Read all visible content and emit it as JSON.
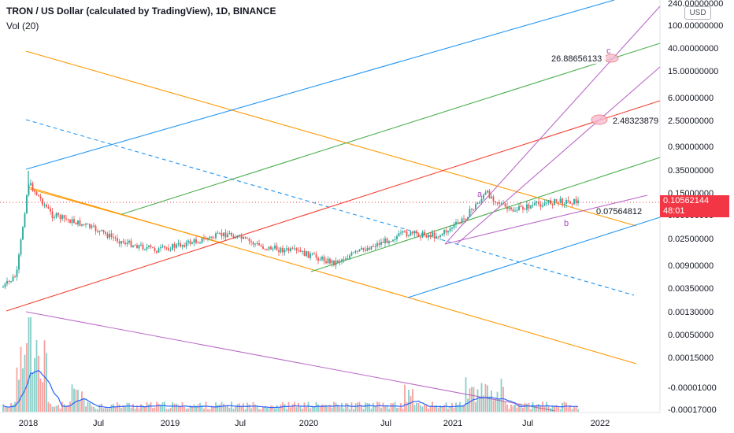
{
  "header": {
    "title": "TRON / US Dollar (calculated by TradingView), 1D, BINANCE",
    "volume_label": "Vol (20)"
  },
  "axis": {
    "currency_button": "USD",
    "price_tag": {
      "value": "0.10562144",
      "countdown": "48:01",
      "color": "#f23645"
    }
  },
  "colors": {
    "up": "#26a69a",
    "down": "#ef5350",
    "orange": "#ff9800",
    "blue": "#2196f3",
    "green": "#4caf50",
    "red": "#f44336",
    "purple": "#ba68c8",
    "volume_ma": "#2962ff"
  },
  "chart_data": {
    "type": "candlestick",
    "title": "TRON / US Dollar (calculated by TradingView), 1D, BINANCE",
    "y_scale": "log-like (labels as printed)",
    "y_tick_labels": [
      "240.00000000",
      "100.00000000",
      "40.00000000",
      "15.00000000",
      "6.00000000",
      "2.50000000",
      "0.90000000",
      "0.35000000",
      "0.15000000",
      "0.06000000",
      "0.02500000",
      "0.00900000",
      "0.00350000",
      "0.00130000",
      "0.00050000",
      "0.00015000",
      "-0.00001000",
      "-0.00017000"
    ],
    "x_tick_labels": [
      "2018",
      "Jul",
      "2019",
      "Jul",
      "2020",
      "Jul",
      "2021",
      "Jul",
      "2022"
    ],
    "last_price": "0.10562144",
    "annotations": [
      {
        "label": "a",
        "color": "#ab47bc"
      },
      {
        "label": "b",
        "color": "#ab47bc"
      },
      {
        "label": "c",
        "color": "#ab47bc"
      },
      {
        "label": "26.88656133"
      },
      {
        "label": "2.48323879"
      },
      {
        "label": "0.07564812"
      }
    ],
    "price_path_x": [
      "2017-10",
      "2017-12",
      "2018-01",
      "2018-03",
      "2018-06",
      "2018-09",
      "2018-12",
      "2019-03",
      "2019-06",
      "2019-09",
      "2019-12",
      "2020-03",
      "2020-06",
      "2020-09",
      "2020-12",
      "2021-02",
      "2021-04",
      "2021-06",
      "2021-08",
      "2021-10"
    ],
    "price_path_y": [
      0.0025,
      0.006,
      0.22,
      0.06,
      0.04,
      0.022,
      0.016,
      0.022,
      0.03,
      0.018,
      0.015,
      0.01,
      0.018,
      0.03,
      0.028,
      0.05,
      0.15,
      0.07,
      0.09,
      0.105
    ],
    "volume": "shown as histogram under price with 20-period MA",
    "trendlines": [
      {
        "color": "#ff9800",
        "desc": "descending orange channel"
      },
      {
        "color": "#2196f3",
        "desc": "ascending blue channel"
      },
      {
        "color": "#4caf50",
        "desc": "ascending green channel"
      },
      {
        "color": "#f44336",
        "desc": "ascending red line"
      },
      {
        "color": "#ba68c8",
        "desc": "purple wedge / fan lines"
      }
    ]
  }
}
